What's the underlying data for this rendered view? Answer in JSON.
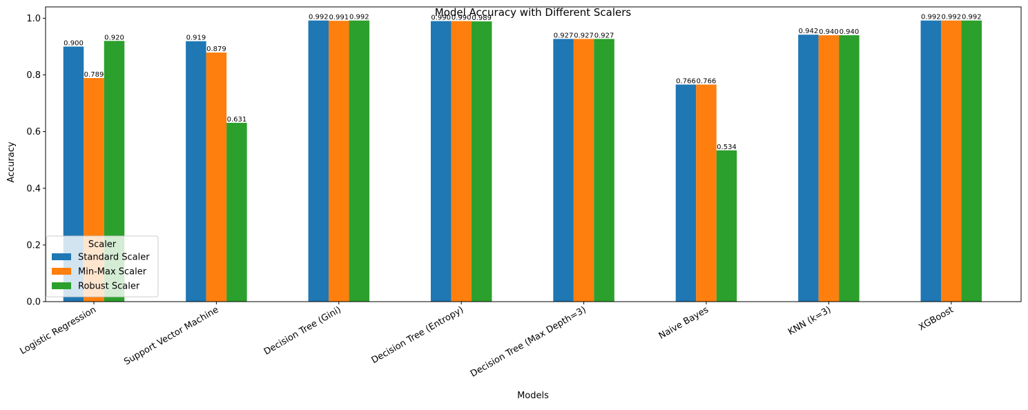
{
  "chart_data": {
    "type": "bar",
    "title": "Model Accuracy with Different Scalers",
    "xlabel": "Models",
    "ylabel": "Accuracy",
    "ylim": [
      0,
      1.04
    ],
    "yticks": [
      "0.0",
      "0.2",
      "0.4",
      "0.6",
      "0.8",
      "1.0"
    ],
    "grid": false,
    "categories": [
      "Logistic Regression",
      "Support Vector Machine",
      "Decision Tree (Gini)",
      "Decision Tree (Entropy)",
      "Decision Tree (Max Depth=3)",
      "Naive Bayes",
      "KNN (k=3)",
      "XGBoost"
    ],
    "series": [
      {
        "name": "Standard Scaler",
        "color": "#1f77b4",
        "values": [
          0.9,
          0.919,
          0.992,
          0.99,
          0.927,
          0.766,
          0.942,
          0.992
        ],
        "labels": [
          "0.900",
          "0.919",
          "0.992",
          "0.990",
          "0.927",
          "0.766",
          "0.942",
          "0.992"
        ]
      },
      {
        "name": "Min-Max Scaler",
        "color": "#ff7f0e",
        "values": [
          0.789,
          0.879,
          0.991,
          0.99,
          0.927,
          0.766,
          0.94,
          0.992
        ],
        "labels": [
          "0.789",
          "0.879",
          "0.991",
          "0.990",
          "0.927",
          "0.766",
          "0.940",
          "0.992"
        ]
      },
      {
        "name": "Robust Scaler",
        "color": "#2ca02c",
        "values": [
          0.92,
          0.631,
          0.992,
          0.989,
          0.927,
          0.534,
          0.94,
          0.992
        ],
        "labels": [
          "0.920",
          "0.631",
          "0.992",
          "0.989",
          "0.927",
          "0.534",
          "0.940",
          "0.992"
        ]
      }
    ],
    "legend": {
      "title": "Scaler",
      "placement": "lower-left"
    }
  }
}
